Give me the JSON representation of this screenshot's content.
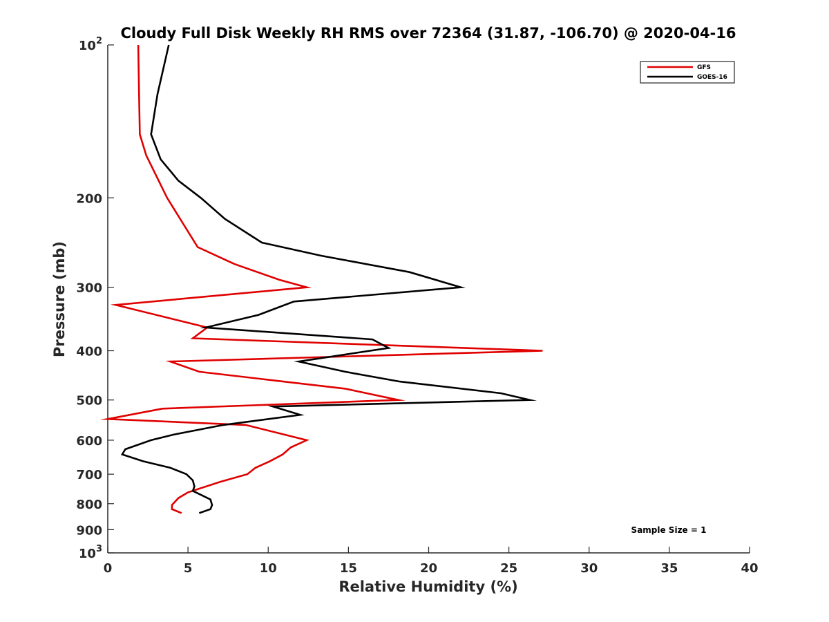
{
  "chart_data": {
    "type": "line",
    "title": "Cloudy Full Disk Weekly RH RMS over 72364 (31.87, -106.70) @ 2020-04-16",
    "xlabel": "Relative Humidity (%)",
    "ylabel": "Pressure (mb)",
    "xlim": [
      0,
      40
    ],
    "ylim": [
      100,
      1000
    ],
    "y_scale": "log",
    "y_reversed": true,
    "x_ticks": [
      "0",
      "5",
      "10",
      "15",
      "20",
      "25",
      "30",
      "35",
      "40"
    ],
    "y_ticks": [
      {
        "value": 100,
        "base": "10",
        "exp": "2"
      },
      {
        "value": 200,
        "label": "200"
      },
      {
        "value": 300,
        "label": "300"
      },
      {
        "value": 400,
        "label": "400"
      },
      {
        "value": 500,
        "label": "500"
      },
      {
        "value": 600,
        "label": "600"
      },
      {
        "value": 700,
        "label": "700"
      },
      {
        "value": 800,
        "label": "800"
      },
      {
        "value": 900,
        "label": "900"
      },
      {
        "value": 1000,
        "base": "10",
        "exp": "3"
      }
    ],
    "grid": false,
    "legend_position": "top-right",
    "annotation": "Sample Size = 1",
    "series": [
      {
        "name": "GFS",
        "color": "#e00000",
        "points": [
          [
            1.9,
            100
          ],
          [
            1.95,
            125
          ],
          [
            2.0,
            150
          ],
          [
            2.4,
            165
          ],
          [
            3.7,
            200
          ],
          [
            5.6,
            250
          ],
          [
            7.9,
            270
          ],
          [
            10.7,
            290
          ],
          [
            12.4,
            300
          ],
          [
            0.5,
            325
          ],
          [
            6.2,
            360
          ],
          [
            5.3,
            378
          ],
          [
            27.1,
            400
          ],
          [
            3.9,
            420
          ],
          [
            5.7,
            440
          ],
          [
            14.8,
            475
          ],
          [
            18.1,
            500
          ],
          [
            3.4,
            520
          ],
          [
            0.0,
            545
          ],
          [
            8.6,
            560
          ],
          [
            12.4,
            600
          ],
          [
            11.4,
            620
          ],
          [
            10.9,
            640
          ],
          [
            10.1,
            660
          ],
          [
            9.2,
            680
          ],
          [
            8.7,
            700
          ],
          [
            7.0,
            725
          ],
          [
            5.0,
            760
          ],
          [
            4.4,
            780
          ],
          [
            4.0,
            805
          ],
          [
            4.0,
            820
          ],
          [
            4.6,
            835
          ]
        ]
      },
      {
        "name": "GOES-16",
        "color": "#000000",
        "points": [
          [
            3.8,
            100
          ],
          [
            3.1,
            125
          ],
          [
            2.7,
            150
          ],
          [
            3.3,
            168
          ],
          [
            4.4,
            185
          ],
          [
            5.8,
            200
          ],
          [
            7.3,
            220
          ],
          [
            9.6,
            245
          ],
          [
            13.3,
            260
          ],
          [
            18.8,
            280
          ],
          [
            22.0,
            300
          ],
          [
            11.6,
            320
          ],
          [
            9.4,
            340
          ],
          [
            6.1,
            360
          ],
          [
            16.5,
            380
          ],
          [
            17.5,
            395
          ],
          [
            11.9,
            420
          ],
          [
            14.8,
            440
          ],
          [
            18.2,
            460
          ],
          [
            24.5,
            485
          ],
          [
            26.3,
            500
          ],
          [
            10.3,
            515
          ],
          [
            12.0,
            535
          ],
          [
            7.2,
            560
          ],
          [
            4.1,
            585
          ],
          [
            2.7,
            600
          ],
          [
            1.1,
            625
          ],
          [
            0.9,
            640
          ],
          [
            2.2,
            660
          ],
          [
            3.9,
            680
          ],
          [
            4.9,
            700
          ],
          [
            5.3,
            720
          ],
          [
            5.4,
            740
          ],
          [
            5.3,
            755
          ],
          [
            6.4,
            785
          ],
          [
            6.5,
            805
          ],
          [
            6.4,
            820
          ],
          [
            5.7,
            835
          ]
        ]
      }
    ]
  }
}
